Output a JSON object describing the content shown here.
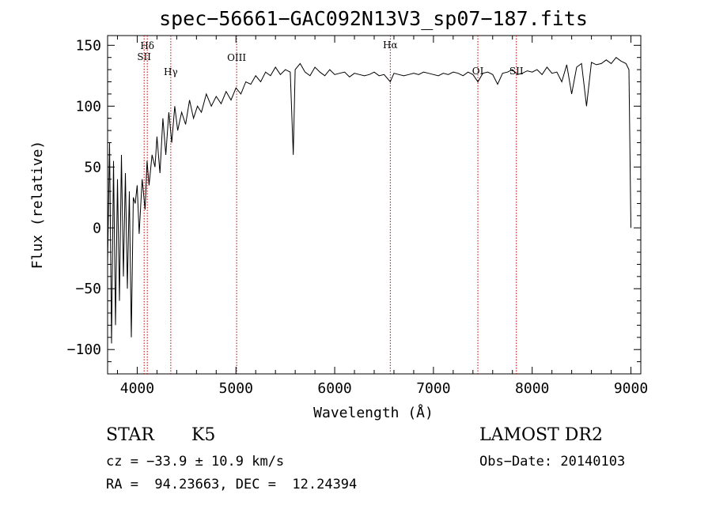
{
  "chart_data": {
    "type": "line",
    "title": "spec−56661−GAC092N13V3_sp07−187.fits",
    "xlabel": "Wavelength (Å)",
    "ylabel": "Flux (relative)",
    "xlim": [
      3700,
      9100
    ],
    "ylim": [
      -120,
      158
    ],
    "xticks": [
      4000,
      5000,
      6000,
      7000,
      8000,
      9000
    ],
    "xtick_labels": [
      "4000",
      "5000",
      "6000",
      "7000",
      "8000",
      "9000"
    ],
    "yticks": [
      -100,
      -50,
      0,
      50,
      100,
      150
    ],
    "ytick_labels": [
      "−100",
      "−50",
      "0",
      "50",
      "100",
      "150"
    ],
    "grid": false,
    "series": [
      {
        "color": "#000000",
        "x": [
          3700,
          3720,
          3740,
          3760,
          3780,
          3800,
          3820,
          3840,
          3860,
          3880,
          3900,
          3920,
          3940,
          3960,
          3980,
          4000,
          4020,
          4050,
          4080,
          4100,
          4120,
          4150,
          4180,
          4200,
          4230,
          4260,
          4290,
          4320,
          4350,
          4380,
          4410,
          4450,
          4490,
          4530,
          4570,
          4610,
          4650,
          4700,
          4750,
          4800,
          4850,
          4900,
          4950,
          5000,
          5050,
          5100,
          5150,
          5200,
          5250,
          5300,
          5350,
          5400,
          5450,
          5500,
          5550,
          5580,
          5600,
          5650,
          5700,
          5750,
          5800,
          5850,
          5900,
          5950,
          6000,
          6050,
          6100,
          6150,
          6200,
          6250,
          6300,
          6350,
          6400,
          6450,
          6500,
          6563,
          6600,
          6650,
          6700,
          6750,
          6800,
          6850,
          6900,
          6950,
          7000,
          7050,
          7100,
          7150,
          7200,
          7250,
          7300,
          7350,
          7400,
          7450,
          7500,
          7550,
          7600,
          7650,
          7700,
          7750,
          7800,
          7850,
          7900,
          7950,
          8000,
          8050,
          8100,
          8150,
          8200,
          8250,
          8300,
          8350,
          8400,
          8450,
          8500,
          8550,
          8600,
          8650,
          8700,
          8750,
          8800,
          8850,
          8900,
          8950,
          8980,
          9000
        ],
        "y": [
          -30,
          70,
          -95,
          55,
          -80,
          40,
          -60,
          60,
          -40,
          45,
          -50,
          30,
          -90,
          25,
          20,
          35,
          -5,
          40,
          15,
          55,
          35,
          60,
          50,
          75,
          45,
          90,
          60,
          95,
          70,
          100,
          80,
          95,
          85,
          105,
          90,
          100,
          95,
          110,
          100,
          108,
          102,
          112,
          105,
          115,
          110,
          120,
          118,
          125,
          120,
          128,
          125,
          132,
          126,
          130,
          128,
          60,
          130,
          135,
          128,
          125,
          132,
          128,
          125,
          130,
          126,
          127,
          128,
          124,
          127,
          126,
          125,
          126,
          128,
          125,
          126,
          120,
          127,
          126,
          125,
          126,
          127,
          126,
          128,
          127,
          126,
          125,
          127,
          126,
          128,
          127,
          125,
          128,
          126,
          120,
          127,
          128,
          126,
          118,
          127,
          128,
          130,
          126,
          127,
          129,
          128,
          130,
          126,
          132,
          127,
          128,
          120,
          134,
          110,
          132,
          135,
          100,
          136,
          134,
          135,
          138,
          135,
          140,
          137,
          135,
          130,
          0
        ]
      }
    ],
    "line_markers": [
      {
        "label": "Hδ",
        "x": 4102
      },
      {
        "label": "SII",
        "x": 4070
      },
      {
        "label": "Hγ",
        "x": 4340
      },
      {
        "label": "OIII",
        "x": 5007
      },
      {
        "label": "Hα",
        "x": 6563
      },
      {
        "label": "OI",
        "x": 7450
      },
      {
        "label": "SII",
        "x": 7840
      }
    ]
  },
  "info": {
    "class": "STAR",
    "subclass": "K5",
    "survey": "LAMOST DR2",
    "cz": "cz = −33.9 ± 10.9 km/s",
    "obs_date": "Obs−Date: 20140103",
    "coords": "RA =  94.23663, DEC =  12.24394"
  }
}
